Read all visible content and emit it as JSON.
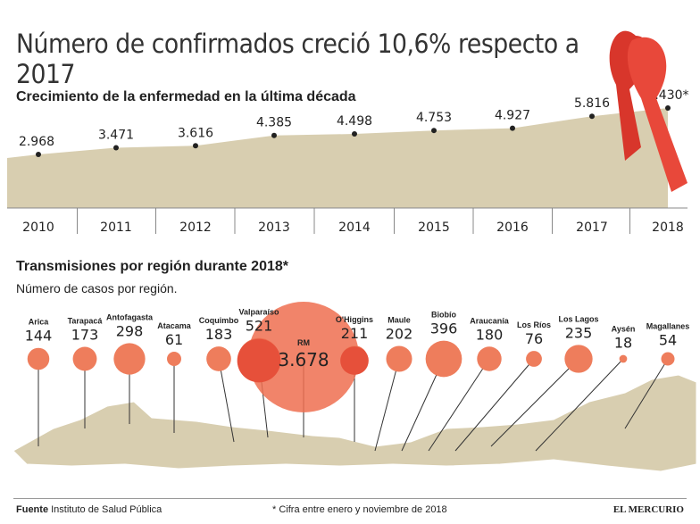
{
  "title": "Número de confirmados creció 10,6% respecto a 2017",
  "chart_data": [
    {
      "type": "area",
      "title": "Crecimiento de la enfermedad en la última década",
      "categories": [
        "2010",
        "2011",
        "2012",
        "2013",
        "2014",
        "2015",
        "2016",
        "2017",
        "2018"
      ],
      "values": [
        2968,
        3471,
        3616,
        4385,
        4498,
        4753,
        4927,
        5816,
        6430
      ],
      "labels": [
        "2.968",
        "3.471",
        "3.616",
        "4.385",
        "4.498",
        "4.753",
        "4.927",
        "5.816",
        "6.430*"
      ],
      "color": "#d8ceb0"
    },
    {
      "type": "bubble",
      "title": "Transmisiones por región durante 2018*",
      "subtitle": "Número de casos por región.",
      "categories": [
        "Arica",
        "Tarapacá",
        "Antofagasta",
        "Atacama",
        "Coquimbo",
        "Valparaíso",
        "RM",
        "O'Higgins",
        "Maule",
        "Biobío",
        "Araucanía",
        "Los Ríos",
        "Los Lagos",
        "Aysén",
        "Magallanes"
      ],
      "values": [
        144,
        173,
        298,
        61,
        183,
        521,
        3678,
        211,
        202,
        396,
        180,
        76,
        235,
        18,
        54
      ],
      "labels": [
        "144",
        "173",
        "298",
        "61",
        "183",
        "521",
        "3.678",
        "211",
        "202",
        "396",
        "180",
        "76",
        "235",
        "18",
        "54"
      ],
      "color": "#ee7d5c"
    }
  ],
  "footer": {
    "source_label": "Fuente",
    "source": "Instituto de Salud Pública",
    "note": "* Cifra entre enero y noviembre de 2018",
    "brand": "EL MERCURIO"
  }
}
